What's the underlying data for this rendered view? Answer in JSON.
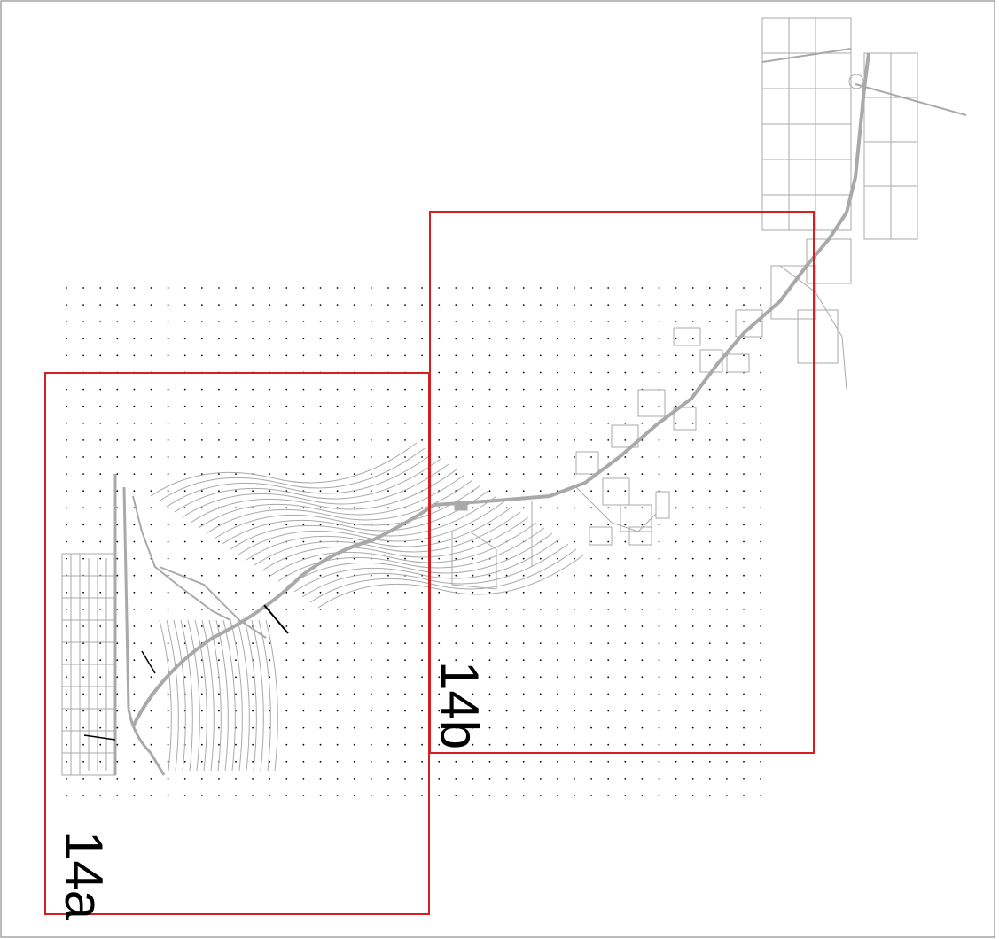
{
  "map": {
    "background": "#ffffff",
    "frame_color": "#777777",
    "grid_point_color": "#000000",
    "linework_color": "#a9a9a9",
    "sheets": [
      {
        "label": "14a",
        "outline_color": "#d42020"
      },
      {
        "label": "14b",
        "outline_color": "#d42020"
      }
    ]
  }
}
